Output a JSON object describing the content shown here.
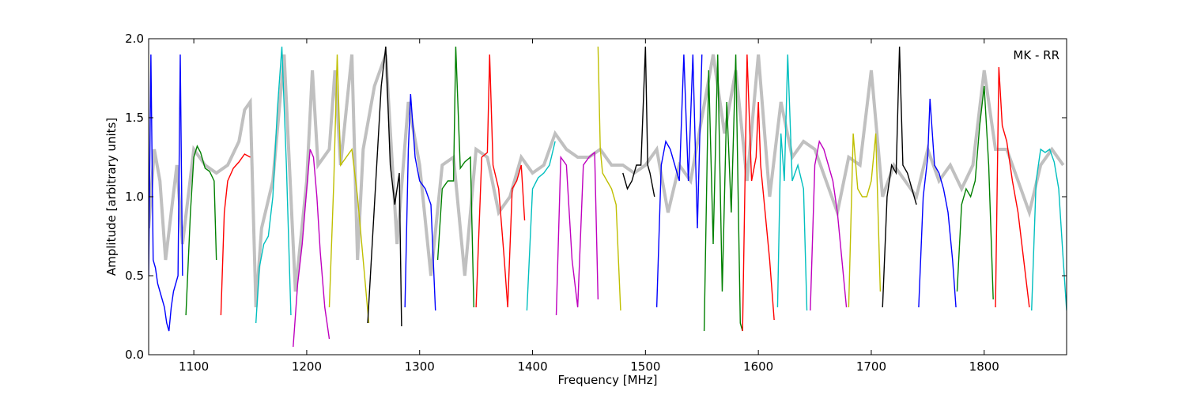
{
  "chart_data": {
    "type": "line",
    "title": "",
    "xlabel": "Frequency [MHz]",
    "ylabel": "Amplitude [arbitrary units]",
    "xlim": [
      1060,
      1873
    ],
    "ylim": [
      0.0,
      2.0
    ],
    "xticks": [
      1100,
      1200,
      1300,
      1400,
      1500,
      1600,
      1700,
      1800
    ],
    "xtick_labels": [
      "1100",
      "1200",
      "1300",
      "1400",
      "1500",
      "1600",
      "1700",
      "1800"
    ],
    "yticks": [
      0.0,
      0.5,
      1.0,
      1.5,
      2.0
    ],
    "ytick_labels": [
      "0.0",
      "0.5",
      "1.0",
      "1.5",
      "2.0"
    ],
    "annotation": "MK - RR",
    "grid": false,
    "background_series": {
      "color": "#c0c0c0",
      "x": [
        1060,
        1065,
        1070,
        1075,
        1080,
        1085,
        1090,
        1095,
        1100,
        1110,
        1120,
        1130,
        1140,
        1145,
        1150,
        1155,
        1160,
        1170,
        1180,
        1190,
        1200,
        1205,
        1210,
        1220,
        1225,
        1230,
        1240,
        1245,
        1250,
        1260,
        1270,
        1280,
        1290,
        1300,
        1310,
        1320,
        1330,
        1340,
        1350,
        1360,
        1370,
        1380,
        1390,
        1400,
        1410,
        1420,
        1430,
        1440,
        1450,
        1460,
        1470,
        1480,
        1490,
        1500,
        1510,
        1520,
        1530,
        1540,
        1550,
        1560,
        1570,
        1580,
        1590,
        1600,
        1610,
        1620,
        1630,
        1640,
        1650,
        1660,
        1670,
        1680,
        1690,
        1700,
        1710,
        1720,
        1730,
        1740,
        1750,
        1760,
        1770,
        1780,
        1790,
        1800,
        1810,
        1820,
        1830,
        1840,
        1850,
        1860,
        1870
      ],
      "y": [
        0.8,
        1.3,
        1.1,
        0.6,
        0.9,
        1.2,
        0.7,
        1.0,
        1.3,
        1.2,
        1.15,
        1.2,
        1.35,
        1.55,
        1.6,
        0.3,
        0.8,
        1.1,
        1.9,
        0.4,
        1.1,
        1.8,
        1.2,
        1.3,
        1.8,
        1.2,
        1.9,
        0.6,
        1.3,
        1.7,
        1.9,
        0.7,
        1.6,
        1.2,
        0.5,
        1.2,
        1.25,
        0.5,
        1.3,
        1.25,
        0.9,
        1.0,
        1.25,
        1.15,
        1.2,
        1.4,
        1.3,
        1.25,
        1.25,
        1.3,
        1.2,
        1.2,
        1.15,
        1.2,
        1.3,
        0.9,
        1.2,
        1.1,
        1.5,
        1.9,
        1.4,
        1.8,
        1.1,
        1.9,
        1.0,
        1.6,
        1.25,
        1.35,
        1.3,
        1.1,
        0.9,
        1.25,
        1.2,
        1.8,
        1.0,
        1.2,
        1.1,
        1.0,
        1.3,
        1.1,
        1.2,
        1.05,
        1.2,
        1.8,
        1.3,
        1.3,
        1.1,
        0.9,
        1.2,
        1.3,
        1.2
      ]
    },
    "series": [
      {
        "color": "#0000ff",
        "x": [
          1060,
          1062,
          1064,
          1066,
          1068,
          1070,
          1072,
          1074,
          1076,
          1078,
          1080,
          1082,
          1084,
          1086,
          1088,
          1090
        ],
        "y": [
          0.5,
          1.9,
          0.6,
          0.55,
          0.45,
          0.4,
          0.35,
          0.3,
          0.2,
          0.15,
          0.3,
          0.4,
          0.45,
          0.5,
          1.9,
          0.5
        ]
      },
      {
        "color": "#008000",
        "x": [
          1093,
          1097,
          1100,
          1103,
          1106,
          1110,
          1114,
          1118,
          1120
        ],
        "y": [
          0.25,
          0.9,
          1.25,
          1.32,
          1.28,
          1.18,
          1.16,
          1.1,
          0.6
        ]
      },
      {
        "color": "#ff0000",
        "x": [
          1124,
          1127,
          1130,
          1135,
          1140,
          1145,
          1150
        ],
        "y": [
          0.25,
          0.9,
          1.1,
          1.18,
          1.22,
          1.27,
          1.25
        ]
      },
      {
        "color": "#00bfbf",
        "x": [
          1155,
          1158,
          1162,
          1166,
          1170,
          1174,
          1178,
          1182,
          1186
        ],
        "y": [
          0.2,
          0.55,
          0.7,
          0.75,
          1.0,
          1.55,
          1.95,
          1.2,
          0.25
        ]
      },
      {
        "color": "#bf00bf",
        "x": [
          1188,
          1192,
          1196,
          1200,
          1203,
          1206,
          1209,
          1212,
          1216,
          1220
        ],
        "y": [
          0.05,
          0.45,
          0.7,
          1.05,
          1.3,
          1.25,
          1.0,
          0.65,
          0.3,
          0.1
        ]
      },
      {
        "color": "#bfbf00",
        "x": [
          1220,
          1224,
          1227,
          1230,
          1235,
          1240,
          1245,
          1250,
          1255
        ],
        "y": [
          0.3,
          1.1,
          1.9,
          1.2,
          1.25,
          1.3,
          1.0,
          0.6,
          0.2
        ]
      },
      {
        "color": "#000000",
        "x": [
          1254,
          1258,
          1262,
          1266,
          1270,
          1274,
          1278,
          1282,
          1284
        ],
        "y": [
          0.2,
          0.7,
          1.2,
          1.7,
          1.95,
          1.2,
          0.95,
          1.15,
          0.18
        ]
      },
      {
        "color": "#0000ff",
        "x": [
          1287,
          1290,
          1292,
          1296,
          1300,
          1305,
          1310,
          1314
        ],
        "y": [
          0.3,
          1.3,
          1.65,
          1.25,
          1.1,
          1.05,
          0.95,
          0.28
        ]
      },
      {
        "color": "#008000",
        "x": [
          1316,
          1320,
          1325,
          1330,
          1332,
          1336,
          1340,
          1345,
          1348
        ],
        "y": [
          0.6,
          1.05,
          1.1,
          1.1,
          1.95,
          1.18,
          1.22,
          1.25,
          0.3
        ]
      },
      {
        "color": "#ff0000",
        "x": [
          1350,
          1355,
          1360,
          1362,
          1365,
          1370,
          1375,
          1378,
          1382,
          1386,
          1390,
          1393
        ],
        "y": [
          0.3,
          1.25,
          1.28,
          1.9,
          1.2,
          1.05,
          0.6,
          0.3,
          1.05,
          1.1,
          1.2,
          0.85
        ]
      },
      {
        "color": "#00bfbf",
        "x": [
          1395,
          1400,
          1405,
          1410,
          1415,
          1420
        ],
        "y": [
          0.28,
          1.05,
          1.12,
          1.15,
          1.2,
          1.35
        ]
      },
      {
        "color": "#bf00bf",
        "x": [
          1421,
          1425,
          1430,
          1435,
          1440,
          1445,
          1450,
          1455,
          1458
        ],
        "y": [
          0.25,
          1.25,
          1.2,
          0.6,
          0.3,
          1.2,
          1.25,
          1.28,
          0.35
        ]
      },
      {
        "color": "#bfbf00",
        "x": [
          1458,
          1460,
          1462,
          1466,
          1470,
          1474,
          1478
        ],
        "y": [
          1.95,
          1.3,
          1.15,
          1.1,
          1.05,
          0.95,
          0.28
        ]
      },
      {
        "color": "#000000",
        "x": [
          1480,
          1484,
          1488,
          1492,
          1496,
          1500,
          1502,
          1504,
          1508
        ],
        "y": [
          1.15,
          1.05,
          1.1,
          1.2,
          1.2,
          1.95,
          1.2,
          1.15,
          1.0
        ]
      },
      {
        "color": "#0000ff",
        "x": [
          1510,
          1514,
          1518,
          1522,
          1526,
          1530,
          1534,
          1538,
          1542,
          1546,
          1550
        ],
        "y": [
          0.3,
          1.2,
          1.35,
          1.3,
          1.2,
          1.1,
          1.9,
          1.1,
          1.9,
          0.8,
          1.9
        ]
      },
      {
        "color": "#008000",
        "x": [
          1552,
          1556,
          1560,
          1564,
          1568,
          1572,
          1576,
          1580,
          1584,
          1586
        ],
        "y": [
          0.15,
          1.8,
          0.7,
          1.9,
          0.4,
          1.6,
          0.9,
          1.9,
          0.2,
          0.15
        ]
      },
      {
        "color": "#ff0000",
        "x": [
          1586,
          1590,
          1594,
          1598,
          1600,
          1602,
          1606,
          1610,
          1614
        ],
        "y": [
          0.15,
          1.9,
          1.1,
          1.25,
          1.6,
          1.2,
          0.9,
          0.6,
          0.22
        ]
      },
      {
        "color": "#00bfbf",
        "x": [
          1617,
          1620,
          1623,
          1626,
          1630,
          1635,
          1640,
          1643
        ],
        "y": [
          0.3,
          1.4,
          1.1,
          1.9,
          1.1,
          1.2,
          1.05,
          0.28
        ]
      },
      {
        "color": "#bf00bf",
        "x": [
          1646,
          1650,
          1654,
          1658,
          1662,
          1666,
          1670,
          1674,
          1678
        ],
        "y": [
          0.28,
          1.2,
          1.35,
          1.3,
          1.2,
          1.1,
          0.9,
          0.6,
          0.3
        ]
      },
      {
        "color": "#bfbf00",
        "x": [
          1680,
          1684,
          1688,
          1692,
          1696,
          1700,
          1704,
          1708
        ],
        "y": [
          0.3,
          1.4,
          1.05,
          1.0,
          1.0,
          1.1,
          1.4,
          0.4
        ]
      },
      {
        "color": "#000000",
        "x": [
          1710,
          1714,
          1718,
          1722,
          1725,
          1728,
          1732,
          1736,
          1740
        ],
        "y": [
          0.3,
          1.0,
          1.2,
          1.15,
          1.95,
          1.2,
          1.15,
          1.05,
          0.95
        ]
      },
      {
        "color": "#0000ff",
        "x": [
          1742,
          1746,
          1750,
          1752,
          1756,
          1760,
          1764,
          1768,
          1772,
          1775
        ],
        "y": [
          0.3,
          1.0,
          1.25,
          1.62,
          1.2,
          1.15,
          1.05,
          0.9,
          0.6,
          0.3
        ]
      },
      {
        "color": "#008000",
        "x": [
          1776,
          1780,
          1784,
          1788,
          1792,
          1796,
          1800,
          1804,
          1808
        ],
        "y": [
          0.4,
          0.95,
          1.05,
          1.0,
          1.1,
          1.45,
          1.7,
          1.2,
          0.35
        ]
      },
      {
        "color": "#ff0000",
        "x": [
          1810,
          1813,
          1816,
          1820,
          1825,
          1830,
          1835,
          1840
        ],
        "y": [
          0.3,
          1.82,
          1.45,
          1.35,
          1.1,
          0.9,
          0.6,
          0.3
        ]
      },
      {
        "color": "#00bfbf",
        "x": [
          1842,
          1846,
          1850,
          1854,
          1858,
          1862,
          1866,
          1870,
          1873
        ],
        "y": [
          0.28,
          1.1,
          1.3,
          1.28,
          1.3,
          1.22,
          1.05,
          0.6,
          0.28
        ]
      }
    ]
  }
}
